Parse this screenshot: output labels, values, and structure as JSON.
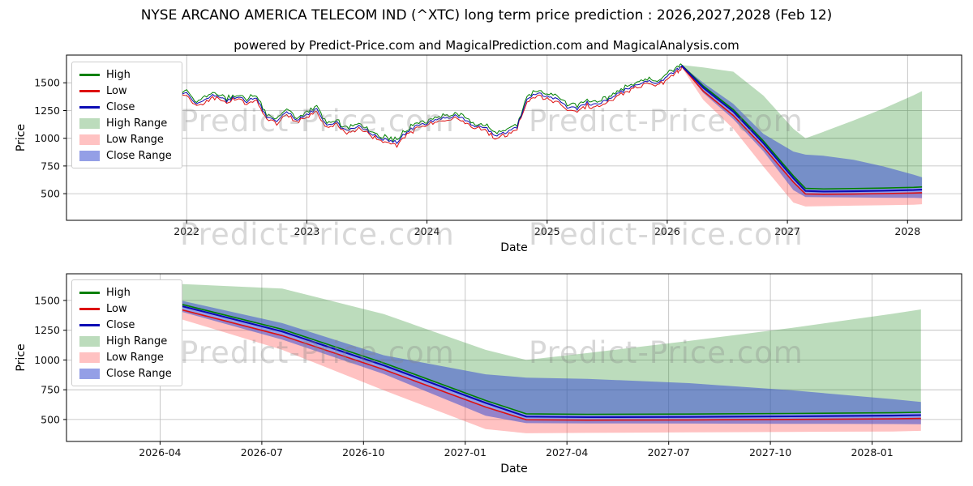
{
  "page": {
    "title": "NYSE ARCANO AMERICA TELECOM IND (^XTC) long term price prediction : 2026,2027,2028 (Feb 12)",
    "subtitle": "powered by Predict-Price.com and MagicalPrediction.com and MagicalAnalysis.com",
    "watermark": "Predict-Price.com"
  },
  "colors": {
    "high_line": "#008000",
    "low_line": "#dd1111",
    "close_line": "#0b0bb4",
    "high_range_fill": "rgba(34,139,34,0.30)",
    "low_range_fill": "rgba(255,80,80,0.35)",
    "close_range_fill": "rgba(60,80,210,0.55)",
    "grid": "#b9b9b9",
    "axis": "#000000",
    "watermark": "#878787"
  },
  "legend": {
    "items": [
      "High",
      "Low",
      "Close",
      "High Range",
      "Low Range",
      "Close Range"
    ]
  },
  "chart_data": [
    {
      "type": "line",
      "name": "history-and-prediction-chart",
      "xlabel": "Date",
      "ylabel": "Price",
      "xlim": [
        2021.0,
        2028.45
      ],
      "ylim": [
        260,
        1750
      ],
      "xticks": [
        2022,
        2023,
        2024,
        2025,
        2026,
        2027,
        2028
      ],
      "xtick_labels": [
        "2022",
        "2023",
        "2024",
        "2025",
        "2026",
        "2027",
        "2028"
      ],
      "yticks": [
        500,
        750,
        1000,
        1250,
        1500
      ],
      "grid": true,
      "legend_position": "upper-left",
      "history": {
        "x": [
          2021.25,
          2021.333,
          2021.417,
          2021.5,
          2021.583,
          2021.667,
          2021.75,
          2021.833,
          2021.917,
          2022.0,
          2022.083,
          2022.167,
          2022.25,
          2022.333,
          2022.417,
          2022.5,
          2022.583,
          2022.667,
          2022.75,
          2022.833,
          2022.917,
          2023.0,
          2023.083,
          2023.167,
          2023.25,
          2023.333,
          2023.417,
          2023.5,
          2023.583,
          2023.667,
          2023.75,
          2023.833,
          2023.917,
          2024.0,
          2024.083,
          2024.167,
          2024.25,
          2024.333,
          2024.417,
          2024.5,
          2024.583,
          2024.667,
          2024.75,
          2024.833,
          2024.917,
          2025.0,
          2025.083,
          2025.167,
          2025.25,
          2025.333,
          2025.417,
          2025.5,
          2025.583,
          2025.667,
          2025.75,
          2025.833,
          2025.917,
          2026.0,
          2026.083,
          2026.12
        ],
        "close": [
          1420,
          1410,
          1430,
          1420,
          1450,
          1430,
          1440,
          1410,
          1430,
          1400,
          1310,
          1370,
          1390,
          1335,
          1380,
          1335,
          1370,
          1180,
          1150,
          1245,
          1160,
          1215,
          1260,
          1115,
          1140,
          1060,
          1115,
          1080,
          1010,
          985,
          965,
          1060,
          1110,
          1135,
          1165,
          1190,
          1200,
          1155,
          1105,
          1085,
          1015,
          1060,
          1105,
          1360,
          1405,
          1380,
          1345,
          1285,
          1260,
          1320,
          1295,
          1345,
          1395,
          1445,
          1480,
          1520,
          1490,
          1555,
          1620,
          1655
        ]
      }
    },
    {
      "type": "line",
      "name": "prediction-zoom-chart",
      "xlabel": "Date",
      "ylabel": "Price",
      "xlim": [
        2026.02,
        2028.22
      ],
      "ylim": [
        316,
        1724
      ],
      "xticks": [
        2026.25,
        2026.5,
        2026.75,
        2027.0,
        2027.25,
        2027.5,
        2027.75,
        2028.0
      ],
      "xtick_labels": [
        "2026-04",
        "2026-07",
        "2026-10",
        "2027-01",
        "2027-04",
        "2027-07",
        "2027-10",
        "2028-01"
      ],
      "yticks": [
        500,
        750,
        1000,
        1250,
        1500
      ],
      "grid": true,
      "legend_position": "upper-left"
    }
  ],
  "prediction": {
    "x": [
      2026.12,
      2026.3,
      2026.55,
      2026.8,
      2027.05,
      2027.15,
      2027.3,
      2027.55,
      2027.8,
      2028.05,
      2028.12
    ],
    "close": [
      1655,
      1455,
      1240,
      955,
      640,
      525,
      520,
      522,
      527,
      533,
      537
    ],
    "high": [
      1660,
      1470,
      1258,
      975,
      660,
      548,
      543,
      546,
      551,
      557,
      561
    ],
    "low": [
      1650,
      1425,
      1205,
      920,
      605,
      498,
      495,
      497,
      501,
      506,
      509
    ],
    "high_range": {
      "upper": [
        1660,
        1638,
        1600,
        1385,
        1085,
        1000,
        1058,
        1160,
        1268,
        1388,
        1425
      ],
      "lower": [
        1655,
        1465,
        1252,
        965,
        652,
        542,
        540,
        542,
        547,
        553,
        557
      ]
    },
    "low_range": {
      "upper": [
        1650,
        1430,
        1210,
        925,
        608,
        500,
        497,
        499,
        503,
        508,
        511
      ],
      "lower": [
        1640,
        1345,
        1085,
        745,
        420,
        385,
        388,
        392,
        396,
        400,
        405
      ]
    },
    "close_range": {
      "upper": [
        1658,
        1500,
        1310,
        1040,
        880,
        852,
        842,
        806,
        746,
        672,
        648
      ],
      "lower": [
        1650,
        1408,
        1172,
        882,
        532,
        470,
        468,
        466,
        464,
        462,
        460
      ]
    }
  }
}
